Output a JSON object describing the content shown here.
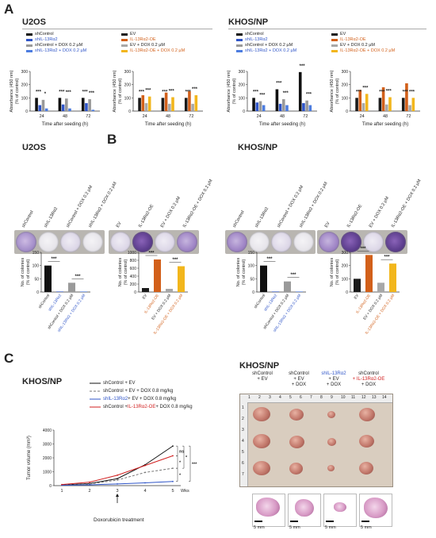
{
  "panels": {
    "a": "A",
    "b": "B",
    "c": "C"
  },
  "cell_lines": {
    "u2os": "U2OS",
    "khos": "KHOS/NP"
  },
  "colors": {
    "black": "#111111",
    "blue": "#2f55c8",
    "grey": "#9a9a9a",
    "blue_light": "#4d7de0",
    "dark": "#1a1a1a",
    "orange": "#d2601a",
    "grey2": "#a8a8a8",
    "yellow": "#f2b61c",
    "red": "#d11f1f"
  },
  "legend_kd": [
    "shControl",
    "shIL-13Rα2",
    "shControl + DOX 0.2 µM",
    "shIL-13Rα2 + DOX 0.2 µM"
  ],
  "legend_oe": [
    "EV",
    "IL-13Rα2-OE",
    "EV + DOX 0.2 µM",
    "IL-13Rα2-OE + DOX 0.2 µM"
  ],
  "axis": {
    "abs_ylabel_1": "Absorbance (450 nm)",
    "abs_ylabel_2": "(% of control)",
    "time_xlabel": "Time after seeding (h)",
    "col_ylabel_1": "No. of colonies",
    "col_ylabel_2": "(% of control)",
    "tumor_ylabel": "Tumor volume (mm³)",
    "wks": "Wks",
    "dox": "Doxorubicin treatment"
  },
  "chart_data": [
    {
      "type": "bar",
      "panel": "A",
      "cell": "U2OS",
      "categories": [
        "24",
        "48",
        "72"
      ],
      "ylim": [
        0,
        300
      ],
      "yticks": [
        "0",
        "100",
        "200",
        "300"
      ],
      "series": [
        {
          "name": "shControl",
          "values": [
            100,
            100,
            100
          ]
        },
        {
          "name": "shIL-13Rα2",
          "values": [
            45,
            50,
            60
          ]
        },
        {
          "name": "shControl + DOX 0.2 µM",
          "values": [
            85,
            95,
            90
          ]
        },
        {
          "name": "shIL-13Rα2 + DOX 0.2 µM",
          "values": [
            20,
            20,
            10
          ]
        }
      ],
      "sig": [
        "***",
        "*",
        "***",
        "***",
        "***",
        "***"
      ]
    },
    {
      "type": "bar",
      "panel": "A",
      "cell": "U2OS",
      "categories": [
        "24",
        "48",
        "72"
      ],
      "ylim": [
        0,
        300
      ],
      "yticks": [
        "0",
        "100",
        "200",
        "300"
      ],
      "series": [
        {
          "name": "EV",
          "values": [
            100,
            100,
            100
          ]
        },
        {
          "name": "IL-13Rα2-OE",
          "values": [
            120,
            140,
            150
          ]
        },
        {
          "name": "EV + DOX 0.2 µM",
          "values": [
            60,
            55,
            55
          ]
        },
        {
          "name": "IL-13Rα2-OE + DOX 0.2 µM",
          "values": [
            110,
            105,
            120
          ]
        }
      ],
      "sig": [
        "***",
        "***",
        "***",
        "***",
        "***",
        "***"
      ]
    },
    {
      "type": "bar",
      "panel": "A",
      "cell": "KHOS/NP",
      "categories": [
        "24",
        "48",
        "72"
      ],
      "ylim": [
        0,
        300
      ],
      "yticks": [
        "0",
        "100",
        "200",
        "300"
      ],
      "series": [
        {
          "name": "shControl",
          "values": [
            100,
            165,
            295
          ]
        },
        {
          "name": "shIL-13Rα2",
          "values": [
            65,
            55,
            60
          ]
        },
        {
          "name": "shControl + DOX 0.2 µM",
          "values": [
            75,
            90,
            80
          ]
        },
        {
          "name": "shIL-13Rα2 + DOX 0.2 µM",
          "values": [
            45,
            45,
            45
          ]
        }
      ],
      "sig": [
        "***",
        "***",
        "***",
        "***",
        "***",
        "***"
      ]
    },
    {
      "type": "bar",
      "panel": "A",
      "cell": "KHOS/NP",
      "categories": [
        "24",
        "48",
        "72"
      ],
      "ylim": [
        0,
        300
      ],
      "yticks": [
        "0",
        "100",
        "200",
        "300"
      ],
      "series": [
        {
          "name": "EV",
          "values": [
            100,
            100,
            100
          ]
        },
        {
          "name": "IL-13Rα2-OE",
          "values": [
            160,
            180,
            210
          ]
        },
        {
          "name": "EV + DOX 0.2 µM",
          "values": [
            60,
            50,
            45
          ]
        },
        {
          "name": "IL-13Rα2-OE + DOX 0.2 µM",
          "values": [
            130,
            105,
            100
          ]
        }
      ],
      "sig": [
        "***",
        "***",
        "***",
        "***",
        "***",
        "***"
      ]
    },
    {
      "type": "bar",
      "panel": "B",
      "cell": "U2OS",
      "categories": [
        "shControl",
        "shIL-13Rα2",
        "shControl + DOX 0.2 µM",
        "shIL-13Rα2 + DOX 0.2 µM"
      ],
      "values": [
        100,
        1,
        35,
        1
      ],
      "ylim": [
        0,
        150
      ],
      "yticks": [
        "0",
        "50",
        "100",
        "150"
      ],
      "sig": [
        "***",
        "***"
      ]
    },
    {
      "type": "bar",
      "panel": "B",
      "cell": "U2OS",
      "categories": [
        "EV",
        "IL-13Rα2-OE",
        "EV + DOX 0.2 µM",
        "IL-13Rα2-OE + DOX 0.2 µM"
      ],
      "values": [
        100,
        820,
        80,
        650
      ],
      "ylim": [
        0,
        1000
      ],
      "yticks": [
        "0",
        "200",
        "400",
        "600",
        "800",
        "1000"
      ],
      "sig": [
        "***",
        "***"
      ]
    },
    {
      "type": "bar",
      "panel": "B",
      "cell": "KHOS/NP",
      "categories": [
        "shControl",
        "shIL-13Rα2",
        "shControl + DOX 0.2 µM",
        "shIL-13Rα2 + DOX 0.2 µM"
      ],
      "values": [
        100,
        1,
        40,
        1
      ],
      "ylim": [
        0,
        150
      ],
      "yticks": [
        "0",
        "50",
        "100",
        "150"
      ],
      "sig": [
        "***",
        "***"
      ]
    },
    {
      "type": "bar",
      "panel": "B",
      "cell": "KHOS/NP",
      "categories": [
        "EV",
        "IL-13Rα2-OE",
        "EV + DOX 0.2 µM",
        "IL-13Rα2-OE + DOX 0.2 µM"
      ],
      "values": [
        100,
        280,
        70,
        215
      ],
      "ylim": [
        0,
        300
      ],
      "yticks": [
        "0",
        "100",
        "200",
        "300"
      ],
      "sig": [
        "***",
        "***"
      ]
    },
    {
      "type": "line",
      "panel": "C",
      "cell": "KHOS/NP",
      "x": [
        1,
        2,
        3,
        4,
        5
      ],
      "ylim": [
        0,
        4000
      ],
      "yticks": [
        "0",
        "1000",
        "2000",
        "3000",
        "4000"
      ],
      "xticks": [
        "1",
        "2",
        "3",
        "4",
        "5"
      ],
      "series": [
        {
          "name": "shControl + EV",
          "values": [
            50,
            150,
            500,
            1500,
            2850
          ]
        },
        {
          "name": "shControl + EV + DOX 0.8 mg/kg",
          "values": [
            40,
            120,
            400,
            950,
            1250
          ]
        },
        {
          "name": "shIL-13Rα2 + EV + DOX 0.8 mg/kg",
          "values": [
            30,
            60,
            120,
            200,
            300
          ]
        },
        {
          "name": "shControl + IL-13Rα2-OE + DOX 0.8 mg/kg",
          "values": [
            80,
            250,
            750,
            1450,
            2150
          ]
        }
      ],
      "sig": [
        "ns",
        "*",
        "*",
        "*",
        "***"
      ]
    }
  ],
  "line_legend": [
    {
      "pre": "shControl + EV",
      "hl": "",
      "post": ""
    },
    {
      "pre": "shControl + EV + DOX 0.8 mg/kg",
      "hl": "",
      "post": ""
    },
    {
      "pre": "",
      "hl": "shIL-13Rα2",
      "post": " + EV + DOX 0.8 mg/kg"
    },
    {
      "pre": "shControl + ",
      "hl": "IL-13Rα2-OE",
      "post": " + DOX 0.8 mg/kg"
    }
  ],
  "tumor_groups": [
    {
      "l1": "shControl",
      "l2": "+ EV",
      "l3": "",
      "hl": false
    },
    {
      "l1": "shControl",
      "l2": "+ EV",
      "l3": "+ DOX",
      "hl": false
    },
    {
      "l1": "shIL-13Rα2",
      "l2": "+ EV",
      "l3": "+ DOX",
      "hl": "blue"
    },
    {
      "l1": "shControl",
      "l2": "+ IL-13Rα2-OE",
      "l3": "+ DOX",
      "hl": "red"
    }
  ],
  "ruler": [
    "1",
    "2",
    "3",
    "4",
    "5",
    "6",
    "7",
    "8",
    "9",
    "10",
    "11",
    "12",
    "13",
    "14"
  ],
  "scale": "5 mm"
}
